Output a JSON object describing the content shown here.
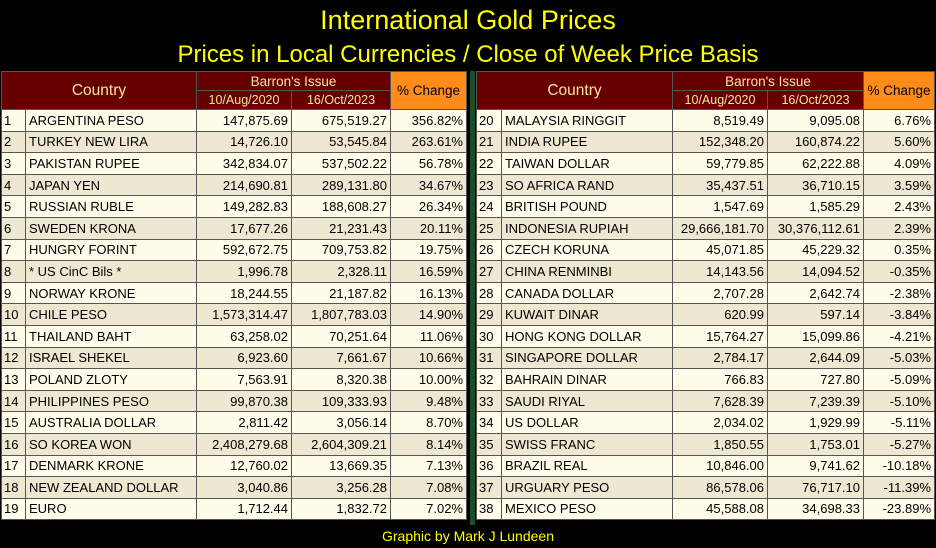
{
  "header": {
    "title": "International Gold Prices",
    "subtitle": "Prices in Local Currencies / Close of Week Price Basis"
  },
  "table": {
    "col_country": "Country",
    "col_issue": "Barron's Issue",
    "col_date1": "10/Aug/2020",
    "col_date2": "16/Oct/2023",
    "col_change": "% Change",
    "left_rows": [
      {
        "rank": "1",
        "country": "ARGENTINA PESO",
        "p2020": "147,875.69",
        "p2023": "675,519.27",
        "change": "356.82%"
      },
      {
        "rank": "2",
        "country": "TURKEY NEW LIRA",
        "p2020": "14,726.10",
        "p2023": "53,545.84",
        "change": "263.61%"
      },
      {
        "rank": "3",
        "country": "PAKISTAN RUPEE",
        "p2020": "342,834.07",
        "p2023": "537,502.22",
        "change": "56.78%"
      },
      {
        "rank": "4",
        "country": "JAPAN YEN",
        "p2020": "214,690.81",
        "p2023": "289,131.80",
        "change": "34.67%"
      },
      {
        "rank": "5",
        "country": "RUSSIAN RUBLE",
        "p2020": "149,282.83",
        "p2023": "188,608.27",
        "change": "26.34%"
      },
      {
        "rank": "6",
        "country": "SWEDEN KRONA",
        "p2020": "17,677.26",
        "p2023": "21,231.43",
        "change": "20.11%"
      },
      {
        "rank": "7",
        "country": "HUNGRY FORINT",
        "p2020": "592,672.75",
        "p2023": "709,753.82",
        "change": "19.75%"
      },
      {
        "rank": "8",
        "country": "* US CinC Bils *",
        "p2020": "1,996.78",
        "p2023": "2,328.11",
        "change": "16.59%"
      },
      {
        "rank": "9",
        "country": "NORWAY KRONE",
        "p2020": "18,244.55",
        "p2023": "21,187.82",
        "change": "16.13%"
      },
      {
        "rank": "10",
        "country": "CHILE PESO",
        "p2020": "1,573,314.47",
        "p2023": "1,807,783.03",
        "change": "14.90%"
      },
      {
        "rank": "11",
        "country": "THAILAND BAHT",
        "p2020": "63,258.02",
        "p2023": "70,251.64",
        "change": "11.06%"
      },
      {
        "rank": "12",
        "country": "ISRAEL SHEKEL",
        "p2020": "6,923.60",
        "p2023": "7,661.67",
        "change": "10.66%"
      },
      {
        "rank": "13",
        "country": "POLAND ZLOTY",
        "p2020": "7,563.91",
        "p2023": "8,320.38",
        "change": "10.00%"
      },
      {
        "rank": "14",
        "country": "PHILIPPINES PESO",
        "p2020": "99,870.38",
        "p2023": "109,333.93",
        "change": "9.48%"
      },
      {
        "rank": "15",
        "country": "AUSTRALIA DOLLAR",
        "p2020": "2,811.42",
        "p2023": "3,056.14",
        "change": "8.70%"
      },
      {
        "rank": "16",
        "country": "SO KOREA WON",
        "p2020": "2,408,279.68",
        "p2023": "2,604,309.21",
        "change": "8.14%"
      },
      {
        "rank": "17",
        "country": "DENMARK KRONE",
        "p2020": "12,760.02",
        "p2023": "13,669.35",
        "change": "7.13%"
      },
      {
        "rank": "18",
        "country": "NEW ZEALAND DOLLAR",
        "p2020": "3,040.86",
        "p2023": "3,256.28",
        "change": "7.08%"
      },
      {
        "rank": "19",
        "country": "EURO",
        "p2020": "1,712.44",
        "p2023": "1,832.72",
        "change": "7.02%"
      }
    ],
    "right_rows": [
      {
        "rank": "20",
        "country": "MALAYSIA RINGGIT",
        "p2020": "8,519.49",
        "p2023": "9,095.08",
        "change": "6.76%"
      },
      {
        "rank": "21",
        "country": "INDIA RUPEE",
        "p2020": "152,348.20",
        "p2023": "160,874.22",
        "change": "5.60%"
      },
      {
        "rank": "22",
        "country": "TAIWAN DOLLAR",
        "p2020": "59,779.85",
        "p2023": "62,222.88",
        "change": "4.09%"
      },
      {
        "rank": "23",
        "country": "SO AFRICA RAND",
        "p2020": "35,437.51",
        "p2023": "36,710.15",
        "change": "3.59%"
      },
      {
        "rank": "24",
        "country": "BRITISH POUND",
        "p2020": "1,547.69",
        "p2023": "1,585.29",
        "change": "2.43%"
      },
      {
        "rank": "25",
        "country": "INDONESIA RUPIAH",
        "p2020": "29,666,181.70",
        "p2023": "30,376,112.61",
        "change": "2.39%"
      },
      {
        "rank": "26",
        "country": "CZECH KORUNA",
        "p2020": "45,071.85",
        "p2023": "45,229.32",
        "change": "0.35%"
      },
      {
        "rank": "27",
        "country": "CHINA RENMINBI",
        "p2020": "14,143.56",
        "p2023": "14,094.52",
        "change": "-0.35%"
      },
      {
        "rank": "28",
        "country": "CANADA DOLLAR",
        "p2020": "2,707.28",
        "p2023": "2,642.74",
        "change": "-2.38%"
      },
      {
        "rank": "29",
        "country": "KUWAIT DINAR",
        "p2020": "620.99",
        "p2023": "597.14",
        "change": "-3.84%"
      },
      {
        "rank": "30",
        "country": "HONG KONG DOLLAR",
        "p2020": "15,764.27",
        "p2023": "15,099.86",
        "change": "-4.21%"
      },
      {
        "rank": "31",
        "country": "SINGAPORE DOLLAR",
        "p2020": "2,784.17",
        "p2023": "2,644.09",
        "change": "-5.03%"
      },
      {
        "rank": "32",
        "country": "BAHRAIN DINAR",
        "p2020": "766.83",
        "p2023": "727.80",
        "change": "-5.09%"
      },
      {
        "rank": "33",
        "country": "SAUDI RIYAL",
        "p2020": "7,628.39",
        "p2023": "7,239.39",
        "change": "-5.10%"
      },
      {
        "rank": "34",
        "country": "US DOLLAR",
        "p2020": "2,034.02",
        "p2023": "1,929.99",
        "change": "-5.11%"
      },
      {
        "rank": "35",
        "country": "SWISS FRANC",
        "p2020": "1,850.55",
        "p2023": "1,753.01",
        "change": "-5.27%"
      },
      {
        "rank": "36",
        "country": "BRAZIL REAL",
        "p2020": "10,846.00",
        "p2023": "9,741.62",
        "change": "-10.18%"
      },
      {
        "rank": "37",
        "country": "URGUARY PESO",
        "p2020": "86,578.06",
        "p2023": "76,717.10",
        "change": "-11.39%"
      },
      {
        "rank": "38",
        "country": "MEXICO PESO",
        "p2020": "45,588.08",
        "p2023": "34,698.33",
        "change": "-23.89%"
      }
    ]
  },
  "footer": {
    "credit": "Graphic by Mark J Lundeen"
  }
}
